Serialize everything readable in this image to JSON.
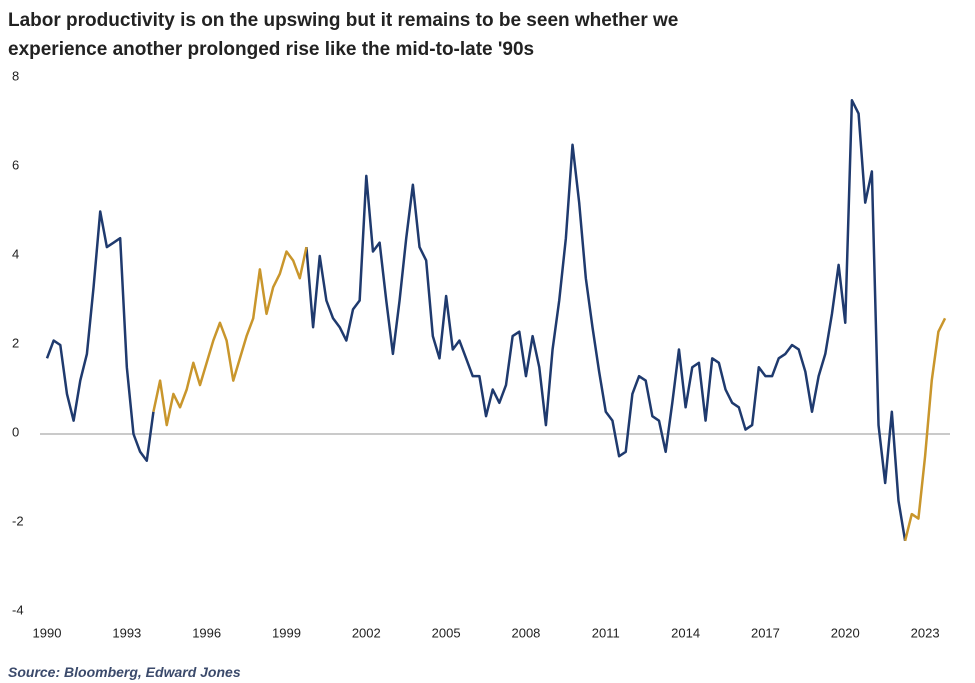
{
  "chart_data": {
    "type": "line",
    "title": "Labor productivity is on the upswing but it remains to be seen whether we experience another prolonged rise like the mid-to-late '90s",
    "source": "Source: Bloomberg, Edward Jones",
    "x": [
      1990,
      1990.25,
      1990.5,
      1990.75,
      1991,
      1991.25,
      1991.5,
      1991.75,
      1992,
      1992.25,
      1992.5,
      1992.75,
      1993,
      1993.25,
      1993.5,
      1993.75,
      1994,
      1994.25,
      1994.5,
      1994.75,
      1995,
      1995.25,
      1995.5,
      1995.75,
      1996,
      1996.25,
      1996.5,
      1996.75,
      1997,
      1997.25,
      1997.5,
      1997.75,
      1998,
      1998.25,
      1998.5,
      1998.75,
      1999,
      1999.25,
      1999.5,
      1999.75,
      2000,
      2000.25,
      2000.5,
      2000.75,
      2001,
      2001.25,
      2001.5,
      2001.75,
      2002,
      2002.25,
      2002.5,
      2002.75,
      2003,
      2003.25,
      2003.5,
      2003.75,
      2004,
      2004.25,
      2004.5,
      2004.75,
      2005,
      2005.25,
      2005.5,
      2005.75,
      2006,
      2006.25,
      2006.5,
      2006.75,
      2007,
      2007.25,
      2007.5,
      2007.75,
      2008,
      2008.25,
      2008.5,
      2008.75,
      2009,
      2009.25,
      2009.5,
      2009.75,
      2010,
      2010.25,
      2010.5,
      2010.75,
      2011,
      2011.25,
      2011.5,
      2011.75,
      2012,
      2012.25,
      2012.5,
      2012.75,
      2013,
      2013.25,
      2013.5,
      2013.75,
      2014,
      2014.25,
      2014.5,
      2014.75,
      2015,
      2015.25,
      2015.5,
      2015.75,
      2016,
      2016.25,
      2016.5,
      2016.75,
      2017,
      2017.25,
      2017.5,
      2017.75,
      2018,
      2018.25,
      2018.5,
      2018.75,
      2019,
      2019.25,
      2019.5,
      2019.75,
      2020,
      2020.25,
      2020.5,
      2020.75,
      2021,
      2021.25,
      2021.5,
      2021.75,
      2022,
      2022.25,
      2022.5,
      2022.75,
      2023,
      2023.25,
      2023.5,
      2023.75
    ],
    "series": [
      {
        "color": "#1f3a6e",
        "values": [
          1.7,
          2.1,
          2.0,
          0.9,
          0.3,
          1.2,
          1.8,
          3.3,
          5.0,
          4.2,
          4.3,
          4.4,
          1.5,
          0.0,
          -0.4,
          -0.6,
          0.5,
          null,
          null,
          null,
          null,
          null,
          null,
          null,
          null,
          null,
          null,
          null,
          null,
          null,
          null,
          null,
          null,
          null,
          null,
          null,
          null,
          null,
          null,
          4.2,
          2.4,
          4.0,
          3.0,
          2.6,
          2.4,
          2.1,
          2.8,
          3.0,
          5.8,
          4.1,
          4.3,
          3.0,
          1.8,
          3.0,
          4.4,
          5.6,
          4.2,
          3.9,
          2.2,
          1.7,
          3.1,
          1.9,
          2.1,
          1.7,
          1.3,
          1.3,
          0.4,
          1.0,
          0.7,
          1.1,
          2.2,
          2.3,
          1.3,
          2.2,
          1.5,
          0.2,
          1.9,
          3.0,
          4.4,
          6.5,
          5.2,
          3.5,
          2.4,
          1.4,
          0.5,
          0.3,
          -0.5,
          -0.4,
          0.9,
          1.3,
          1.2,
          0.4,
          0.3,
          -0.4,
          0.7,
          1.9,
          0.6,
          1.5,
          1.6,
          0.3,
          1.7,
          1.6,
          1.0,
          0.7,
          0.6,
          0.1,
          0.2,
          1.5,
          1.3,
          1.3,
          1.7,
          1.8,
          2.0,
          1.9,
          1.4,
          0.5,
          1.3,
          1.8,
          2.7,
          3.8,
          2.5,
          7.5,
          7.2,
          5.2,
          5.9,
          0.2,
          -1.1,
          0.5,
          -1.5,
          -2.4,
          null,
          null,
          null,
          null,
          null,
          null
        ]
      },
      {
        "color": "#c9962c",
        "values": [
          null,
          null,
          null,
          null,
          null,
          null,
          null,
          null,
          null,
          null,
          null,
          null,
          null,
          null,
          null,
          null,
          0.5,
          1.2,
          0.2,
          0.9,
          0.6,
          1.0,
          1.6,
          1.1,
          1.6,
          2.1,
          2.5,
          2.1,
          1.2,
          1.7,
          2.2,
          2.6,
          3.7,
          2.7,
          3.3,
          3.6,
          4.1,
          3.9,
          3.5,
          4.2,
          null,
          null,
          null,
          null,
          null,
          null,
          null,
          null,
          null,
          null,
          null,
          null,
          null,
          null,
          null,
          null,
          null,
          null,
          null,
          null,
          null,
          null,
          null,
          null,
          null,
          null,
          null,
          null,
          null,
          null,
          null,
          null,
          null,
          null,
          null,
          null,
          null,
          null,
          null,
          null,
          null,
          null,
          null,
          null,
          null,
          null,
          null,
          null,
          null,
          null,
          null,
          null,
          null,
          null,
          null,
          null,
          null,
          null,
          null,
          null,
          null,
          null,
          null,
          null,
          null,
          null,
          null,
          null,
          null,
          null,
          null,
          null,
          null,
          null,
          null,
          null,
          null,
          null,
          null,
          null,
          null,
          null,
          null,
          null,
          null,
          null,
          null,
          null,
          null,
          -2.4,
          -1.8,
          -1.9,
          -0.5,
          1.2,
          2.3,
          2.6
        ]
      }
    ],
    "xlim": [
      1990,
      2024.5
    ],
    "xticks": [
      1990,
      1993,
      1996,
      1999,
      2002,
      2005,
      2008,
      2011,
      2014,
      2017,
      2020,
      2023
    ],
    "ylim": [
      -4,
      8
    ],
    "yticks": [
      -4,
      -2,
      0,
      2,
      4,
      6,
      8
    ],
    "grid": false
  }
}
